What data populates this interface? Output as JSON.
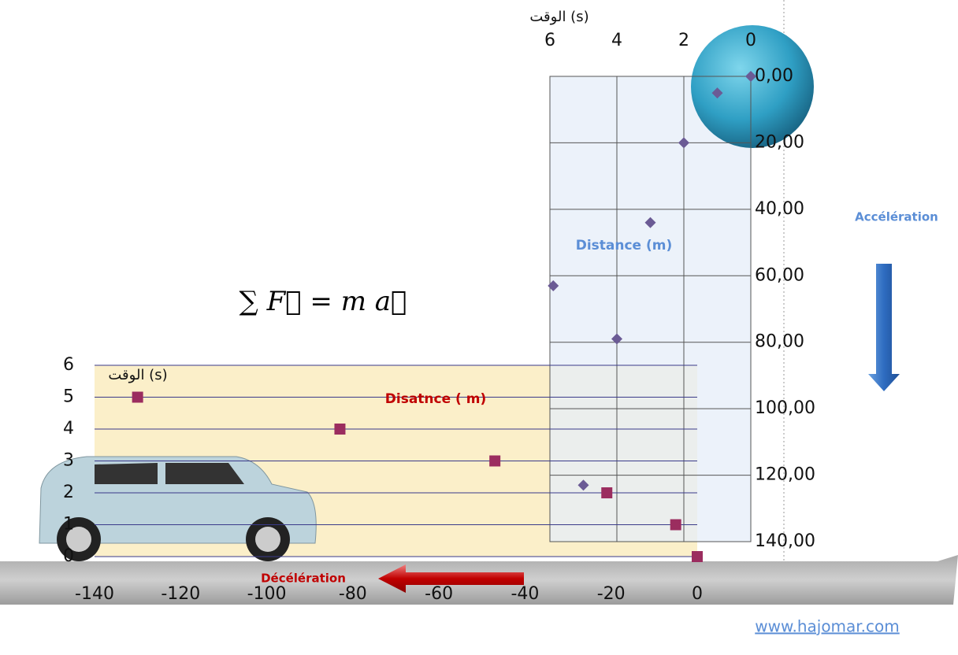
{
  "chart_data": [
    {
      "type": "scatter",
      "x_label": "الوقت (s)",
      "y_label": "Distance  (m)",
      "annotation": "Accélération",
      "x": [
        0,
        1,
        2,
        3,
        5.9,
        4,
        5
      ],
      "values": [
        0,
        5,
        20,
        44,
        63,
        79,
        123
      ],
      "color": "#6b5b95",
      "marker": "diamond",
      "x_inverted": true,
      "y_inverted": true,
      "grid": true,
      "xlim": [
        0,
        6
      ],
      "xticks": [
        0,
        2,
        4,
        6
      ],
      "ylim": [
        0,
        140
      ],
      "yticks": [
        {
          "value": 0,
          "label": "0,00"
        },
        {
          "value": 20,
          "label": "20,00"
        },
        {
          "value": 40,
          "label": "40,00"
        },
        {
          "value": 60,
          "label": "60,00"
        },
        {
          "value": 80,
          "label": "80,00"
        },
        {
          "value": 100,
          "label": "100,00"
        },
        {
          "value": 120,
          "label": "120,00"
        },
        {
          "value": 140,
          "label": "140,00"
        }
      ]
    },
    {
      "type": "scatter",
      "x_label": "Disatnce  ( m)",
      "y_label": "الوقت (s)",
      "annotation": "Décélération",
      "x": [
        -130,
        -83,
        -47,
        -21,
        -5,
        0
      ],
      "values": [
        5,
        4,
        3,
        2,
        1,
        0
      ],
      "color": "#9b2d5f",
      "marker": "square",
      "x_inverted": false,
      "y_inverted": false,
      "grid": true,
      "xlim": [
        -140,
        0
      ],
      "xticks": [
        -140,
        -120,
        -100,
        -80,
        -60,
        -40,
        -20,
        0
      ],
      "ylim": [
        0,
        6
      ],
      "yticks": [
        0,
        1,
        2,
        3,
        4,
        5,
        6
      ]
    }
  ],
  "formula": "∑ F⃗ = m a⃗",
  "source": "www.hajomar.com"
}
